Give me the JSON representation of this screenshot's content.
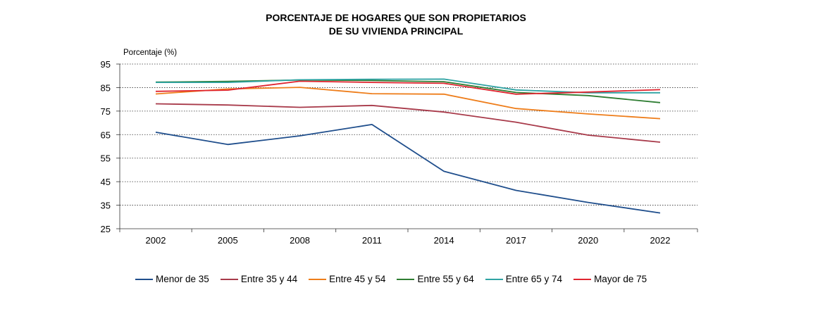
{
  "chart_data": {
    "type": "line",
    "title_lines": [
      "PORCENTAJE DE HOGARES QUE SON PROPIETARIOS",
      "DE SU VIVIENDA PRINCIPAL"
    ],
    "ylabel": "Porcentaje (%)",
    "xlabel": "",
    "categories": [
      "2002",
      "2005",
      "2008",
      "2011",
      "2014",
      "2017",
      "2020",
      "2022"
    ],
    "ylim": [
      25,
      95
    ],
    "yticks": [
      95,
      85,
      75,
      65,
      55,
      45,
      35,
      25
    ],
    "grid": "horizontal dotted",
    "legend_position": "bottom",
    "series": [
      {
        "name": "Menor de 35",
        "color": "#1f4e8c",
        "values": [
          66.0,
          60.8,
          64.5,
          69.3,
          49.4,
          41.3,
          36.2,
          31.7
        ]
      },
      {
        "name": "Entre 35 y 44",
        "color": "#a83a4a",
        "values": [
          78.1,
          77.6,
          76.6,
          77.4,
          74.6,
          70.3,
          64.8,
          61.8
        ]
      },
      {
        "name": "Entre 45 y 54",
        "color": "#ee7d1a",
        "values": [
          82.3,
          84.4,
          85.1,
          82.4,
          82.2,
          76.1,
          73.8,
          71.8
        ]
      },
      {
        "name": "Entre 55 y 64",
        "color": "#2e7d32",
        "values": [
          87.3,
          87.6,
          88.2,
          88.0,
          87.5,
          82.9,
          81.6,
          78.6
        ]
      },
      {
        "name": "Entre 65 y 74",
        "color": "#2fa3a3",
        "values": [
          87.2,
          87.2,
          88.3,
          88.5,
          88.6,
          84.0,
          82.8,
          82.8
        ]
      },
      {
        "name": "Mayor de 75",
        "color": "#e0242f",
        "values": [
          83.4,
          83.9,
          87.7,
          87.2,
          86.8,
          82.2,
          83.1,
          84.1
        ]
      }
    ]
  }
}
